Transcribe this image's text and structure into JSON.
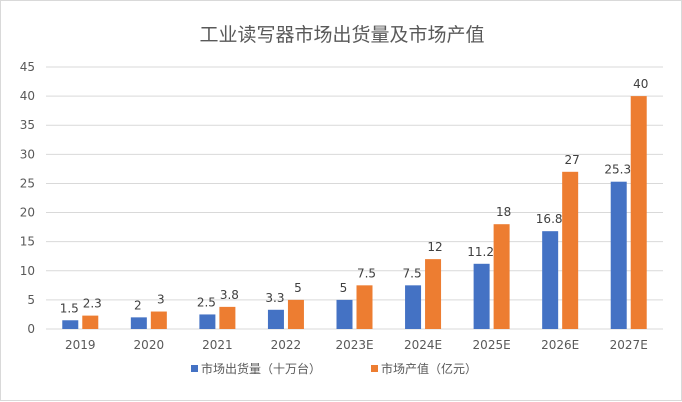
{
  "chart_data": {
    "type": "bar",
    "title": "工业读写器市场出货量及市场产值",
    "categories": [
      "2019",
      "2020",
      "2021",
      "2022",
      "2023E",
      "2024E",
      "2025E",
      "2026E",
      "2027E"
    ],
    "series": [
      {
        "name": "市场出货量（十万台）",
        "color": "#4472c4",
        "values": [
          1.5,
          2,
          2.5,
          3.3,
          5,
          7.5,
          11.2,
          16.8,
          25.3
        ],
        "labels": [
          "1.5",
          "2",
          "2.5",
          "3.3",
          "5",
          "7.5",
          "11.2",
          "16.8",
          "25.3"
        ]
      },
      {
        "name": "市场产值（亿元）",
        "color": "#ed7d31",
        "values": [
          2.3,
          3,
          3.8,
          5,
          7.5,
          12,
          18,
          27,
          40
        ],
        "labels": [
          "2.3",
          "3",
          "3.8",
          "5",
          "7.5",
          "12",
          "18",
          "27",
          "40"
        ]
      }
    ],
    "ylim": [
      0,
      45
    ],
    "yticks": [
      "0",
      "5",
      "10",
      "15",
      "20",
      "25",
      "30",
      "35",
      "40",
      "45"
    ],
    "grid": true,
    "legend_position": "bottom",
    "grid_color": "#d9d9d9"
  }
}
